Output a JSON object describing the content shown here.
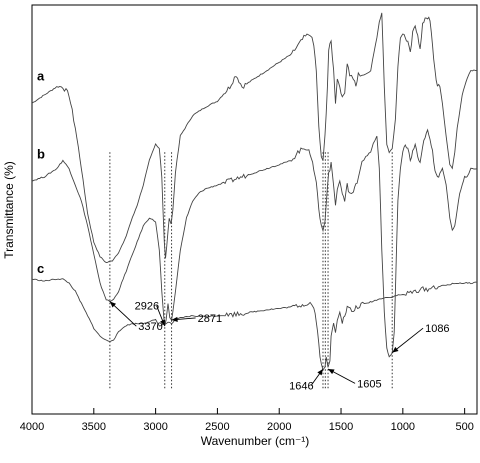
{
  "chart_data": {
    "type": "line",
    "xlabel": "Wavenumber (cm⁻¹)",
    "ylabel": "Transmittance (%)",
    "xlim": [
      4000,
      400
    ],
    "x_reversed": true,
    "x_ticks": [
      4000,
      3500,
      3000,
      2500,
      2000,
      1500,
      1000,
      500
    ],
    "y_ticks_shown": false,
    "grid": false,
    "legend": "none",
    "series": [
      {
        "name": "a",
        "points": [
          [
            4000,
            0.76
          ],
          [
            3900,
            0.78
          ],
          [
            3800,
            0.8
          ],
          [
            3750,
            0.8
          ],
          [
            3700,
            0.78
          ],
          [
            3650,
            0.7
          ],
          [
            3600,
            0.6
          ],
          [
            3550,
            0.49
          ],
          [
            3500,
            0.42
          ],
          [
            3450,
            0.385
          ],
          [
            3400,
            0.37
          ],
          [
            3350,
            0.375
          ],
          [
            3300,
            0.395
          ],
          [
            3250,
            0.425
          ],
          [
            3200,
            0.47
          ],
          [
            3150,
            0.51
          ],
          [
            3100,
            0.56
          ],
          [
            3050,
            0.62
          ],
          [
            3000,
            0.66
          ],
          [
            2970,
            0.65
          ],
          [
            2950,
            0.58
          ],
          [
            2930,
            0.42
          ],
          [
            2920,
            0.38
          ],
          [
            2910,
            0.41
          ],
          [
            2890,
            0.48
          ],
          [
            2875,
            0.465
          ],
          [
            2860,
            0.5
          ],
          [
            2840,
            0.59
          ],
          [
            2800,
            0.68
          ],
          [
            2700,
            0.73
          ],
          [
            2600,
            0.75
          ],
          [
            2500,
            0.765
          ],
          [
            2400,
            0.8
          ],
          [
            2350,
            0.83
          ],
          [
            2300,
            0.8
          ],
          [
            2200,
            0.82
          ],
          [
            2100,
            0.84
          ],
          [
            2000,
            0.86
          ],
          [
            1900,
            0.88
          ],
          [
            1800,
            0.92
          ],
          [
            1750,
            0.93
          ],
          [
            1720,
            0.9
          ],
          [
            1700,
            0.84
          ],
          [
            1680,
            0.7
          ],
          [
            1660,
            0.63
          ],
          [
            1646,
            0.615
          ],
          [
            1630,
            0.68
          ],
          [
            1610,
            0.8
          ],
          [
            1600,
            0.89
          ],
          [
            1580,
            0.91
          ],
          [
            1560,
            0.84
          ],
          [
            1545,
            0.76
          ],
          [
            1530,
            0.82
          ],
          [
            1510,
            0.8
          ],
          [
            1490,
            0.77
          ],
          [
            1470,
            0.79
          ],
          [
            1450,
            0.86
          ],
          [
            1430,
            0.83
          ],
          [
            1400,
            0.82
          ],
          [
            1380,
            0.8
          ],
          [
            1360,
            0.83
          ],
          [
            1330,
            0.83
          ],
          [
            1300,
            0.83
          ],
          [
            1260,
            0.84
          ],
          [
            1230,
            0.89
          ],
          [
            1210,
            0.92
          ],
          [
            1190,
            0.96
          ],
          [
            1170,
            0.98
          ],
          [
            1150,
            0.8
          ],
          [
            1130,
            0.66
          ],
          [
            1110,
            0.64
          ],
          [
            1086,
            0.65
          ],
          [
            1060,
            0.72
          ],
          [
            1040,
            0.85
          ],
          [
            1020,
            0.92
          ],
          [
            1000,
            0.93
          ],
          [
            980,
            0.92
          ],
          [
            960,
            0.91
          ],
          [
            940,
            0.88
          ],
          [
            920,
            0.93
          ],
          [
            900,
            0.95
          ],
          [
            880,
            0.93
          ],
          [
            860,
            0.89
          ],
          [
            840,
            0.95
          ],
          [
            820,
            0.97
          ],
          [
            800,
            0.97
          ],
          [
            780,
            0.96
          ],
          [
            760,
            0.9
          ],
          [
            740,
            0.84
          ],
          [
            720,
            0.8
          ],
          [
            700,
            0.8
          ],
          [
            680,
            0.76
          ],
          [
            650,
            0.68
          ],
          [
            620,
            0.61
          ],
          [
            600,
            0.6
          ],
          [
            580,
            0.64
          ],
          [
            560,
            0.7
          ],
          [
            520,
            0.78
          ],
          [
            500,
            0.8
          ],
          [
            480,
            0.82
          ],
          [
            450,
            0.84
          ],
          [
            400,
            0.84
          ]
        ]
      },
      {
        "name": "b",
        "points": [
          [
            4000,
            0.57
          ],
          [
            3900,
            0.58
          ],
          [
            3800,
            0.6
          ],
          [
            3750,
            0.62
          ],
          [
            3700,
            0.6
          ],
          [
            3650,
            0.56
          ],
          [
            3600,
            0.52
          ],
          [
            3550,
            0.46
          ],
          [
            3500,
            0.39
          ],
          [
            3450,
            0.32
          ],
          [
            3400,
            0.28
          ],
          [
            3370,
            0.275
          ],
          [
            3340,
            0.28
          ],
          [
            3300,
            0.3
          ],
          [
            3250,
            0.34
          ],
          [
            3200,
            0.38
          ],
          [
            3150,
            0.42
          ],
          [
            3100,
            0.46
          ],
          [
            3050,
            0.48
          ],
          [
            3000,
            0.47
          ],
          [
            2970,
            0.4
          ],
          [
            2950,
            0.3
          ],
          [
            2930,
            0.22
          ],
          [
            2926,
            0.215
          ],
          [
            2915,
            0.23
          ],
          [
            2900,
            0.27
          ],
          [
            2885,
            0.235
          ],
          [
            2871,
            0.23
          ],
          [
            2860,
            0.25
          ],
          [
            2840,
            0.3
          ],
          [
            2800,
            0.4
          ],
          [
            2750,
            0.48
          ],
          [
            2700,
            0.52
          ],
          [
            2650,
            0.54
          ],
          [
            2600,
            0.55
          ],
          [
            2500,
            0.56
          ],
          [
            2400,
            0.57
          ],
          [
            2300,
            0.58
          ],
          [
            2200,
            0.59
          ],
          [
            2100,
            0.6
          ],
          [
            2000,
            0.61
          ],
          [
            1900,
            0.62
          ],
          [
            1850,
            0.64
          ],
          [
            1800,
            0.65
          ],
          [
            1760,
            0.65
          ],
          [
            1740,
            0.62
          ],
          [
            1720,
            0.6
          ],
          [
            1700,
            0.57
          ],
          [
            1680,
            0.5
          ],
          [
            1660,
            0.46
          ],
          [
            1646,
            0.45
          ],
          [
            1630,
            0.47
          ],
          [
            1610,
            0.56
          ],
          [
            1600,
            0.59
          ],
          [
            1580,
            0.61
          ],
          [
            1560,
            0.56
          ],
          [
            1545,
            0.51
          ],
          [
            1530,
            0.55
          ],
          [
            1510,
            0.57
          ],
          [
            1490,
            0.54
          ],
          [
            1470,
            0.52
          ],
          [
            1450,
            0.56
          ],
          [
            1430,
            0.54
          ],
          [
            1400,
            0.54
          ],
          [
            1380,
            0.56
          ],
          [
            1360,
            0.58
          ],
          [
            1330,
            0.62
          ],
          [
            1300,
            0.63
          ],
          [
            1260,
            0.64
          ],
          [
            1240,
            0.66
          ],
          [
            1210,
            0.68
          ],
          [
            1190,
            0.6
          ],
          [
            1170,
            0.4
          ],
          [
            1150,
            0.25
          ],
          [
            1130,
            0.16
          ],
          [
            1110,
            0.14
          ],
          [
            1095,
            0.145
          ],
          [
            1086,
            0.15
          ],
          [
            1070,
            0.2
          ],
          [
            1060,
            0.3
          ],
          [
            1050,
            0.42
          ],
          [
            1040,
            0.52
          ],
          [
            1020,
            0.6
          ],
          [
            1000,
            0.64
          ],
          [
            980,
            0.66
          ],
          [
            960,
            0.65
          ],
          [
            940,
            0.62
          ],
          [
            920,
            0.64
          ],
          [
            900,
            0.66
          ],
          [
            880,
            0.63
          ],
          [
            860,
            0.61
          ],
          [
            840,
            0.65
          ],
          [
            820,
            0.68
          ],
          [
            800,
            0.69
          ],
          [
            780,
            0.67
          ],
          [
            760,
            0.64
          ],
          [
            740,
            0.6
          ],
          [
            720,
            0.58
          ],
          [
            700,
            0.59
          ],
          [
            680,
            0.6
          ],
          [
            650,
            0.56
          ],
          [
            620,
            0.48
          ],
          [
            600,
            0.45
          ],
          [
            580,
            0.46
          ],
          [
            560,
            0.5
          ],
          [
            540,
            0.54
          ],
          [
            520,
            0.56
          ],
          [
            500,
            0.58
          ],
          [
            480,
            0.58
          ],
          [
            450,
            0.6
          ],
          [
            400,
            0.6
          ]
        ]
      },
      {
        "name": "c",
        "points": [
          [
            4000,
            0.33
          ],
          [
            3900,
            0.325
          ],
          [
            3800,
            0.33
          ],
          [
            3750,
            0.33
          ],
          [
            3700,
            0.32
          ],
          [
            3650,
            0.3
          ],
          [
            3600,
            0.27
          ],
          [
            3550,
            0.24
          ],
          [
            3500,
            0.21
          ],
          [
            3450,
            0.19
          ],
          [
            3400,
            0.18
          ],
          [
            3370,
            0.178
          ],
          [
            3340,
            0.182
          ],
          [
            3300,
            0.2
          ],
          [
            3250,
            0.215
          ],
          [
            3200,
            0.22
          ],
          [
            3100,
            0.222
          ],
          [
            3000,
            0.23
          ],
          [
            2970,
            0.215
          ],
          [
            2940,
            0.22
          ],
          [
            2926,
            0.218
          ],
          [
            2900,
            0.225
          ],
          [
            2871,
            0.22
          ],
          [
            2850,
            0.228
          ],
          [
            2800,
            0.235
          ],
          [
            2700,
            0.24
          ],
          [
            2600,
            0.238
          ],
          [
            2500,
            0.24
          ],
          [
            2400,
            0.243
          ],
          [
            2300,
            0.246
          ],
          [
            2200,
            0.25
          ],
          [
            2100,
            0.255
          ],
          [
            2000,
            0.258
          ],
          [
            1900,
            0.262
          ],
          [
            1800,
            0.268
          ],
          [
            1750,
            0.272
          ],
          [
            1720,
            0.26
          ],
          [
            1700,
            0.23
          ],
          [
            1680,
            0.17
          ],
          [
            1660,
            0.12
          ],
          [
            1646,
            0.11
          ],
          [
            1630,
            0.12
          ],
          [
            1620,
            0.135
          ],
          [
            1605,
            0.11
          ],
          [
            1590,
            0.13
          ],
          [
            1580,
            0.19
          ],
          [
            1560,
            0.22
          ],
          [
            1545,
            0.2
          ],
          [
            1530,
            0.23
          ],
          [
            1510,
            0.25
          ],
          [
            1490,
            0.225
          ],
          [
            1470,
            0.24
          ],
          [
            1450,
            0.26
          ],
          [
            1400,
            0.25
          ],
          [
            1380,
            0.26
          ],
          [
            1350,
            0.265
          ],
          [
            1300,
            0.27
          ],
          [
            1250,
            0.275
          ],
          [
            1200,
            0.28
          ],
          [
            1150,
            0.285
          ],
          [
            1100,
            0.285
          ],
          [
            1050,
            0.29
          ],
          [
            1000,
            0.292
          ],
          [
            950,
            0.295
          ],
          [
            900,
            0.3
          ],
          [
            850,
            0.305
          ],
          [
            800,
            0.305
          ],
          [
            750,
            0.31
          ],
          [
            700,
            0.312
          ],
          [
            650,
            0.315
          ],
          [
            600,
            0.318
          ],
          [
            550,
            0.32
          ],
          [
            500,
            0.32
          ],
          [
            450,
            0.32
          ],
          [
            400,
            0.322
          ]
        ]
      }
    ],
    "curve_labels": [
      {
        "text": "a",
        "x": 3960,
        "y": 0.81
      },
      {
        "text": "b",
        "x": 3960,
        "y": 0.62
      },
      {
        "text": "c",
        "x": 3960,
        "y": 0.34
      }
    ],
    "reference_lines": [
      3370,
      2926,
      2871,
      1646,
      1627,
      1605,
      1086
    ],
    "annotations": [
      {
        "text": "3370",
        "target_x": 3370,
        "target_y": 0.275,
        "text_x": 3140,
        "text_y": 0.205
      },
      {
        "text": "2926",
        "target_x": 2926,
        "target_y": 0.215,
        "text_x": 3170,
        "text_y": 0.255
      },
      {
        "text": "2871",
        "target_x": 2871,
        "target_y": 0.23,
        "text_x": 2660,
        "text_y": 0.225
      },
      {
        "text": "1086",
        "target_x": 1086,
        "target_y": 0.15,
        "text_x": 820,
        "text_y": 0.2
      },
      {
        "text": "1646",
        "target_x": 1646,
        "target_y": 0.11,
        "text_x": 1920,
        "text_y": 0.06
      },
      {
        "text": "1605",
        "target_x": 1605,
        "target_y": 0.11,
        "text_x": 1370,
        "text_y": 0.065
      }
    ]
  }
}
